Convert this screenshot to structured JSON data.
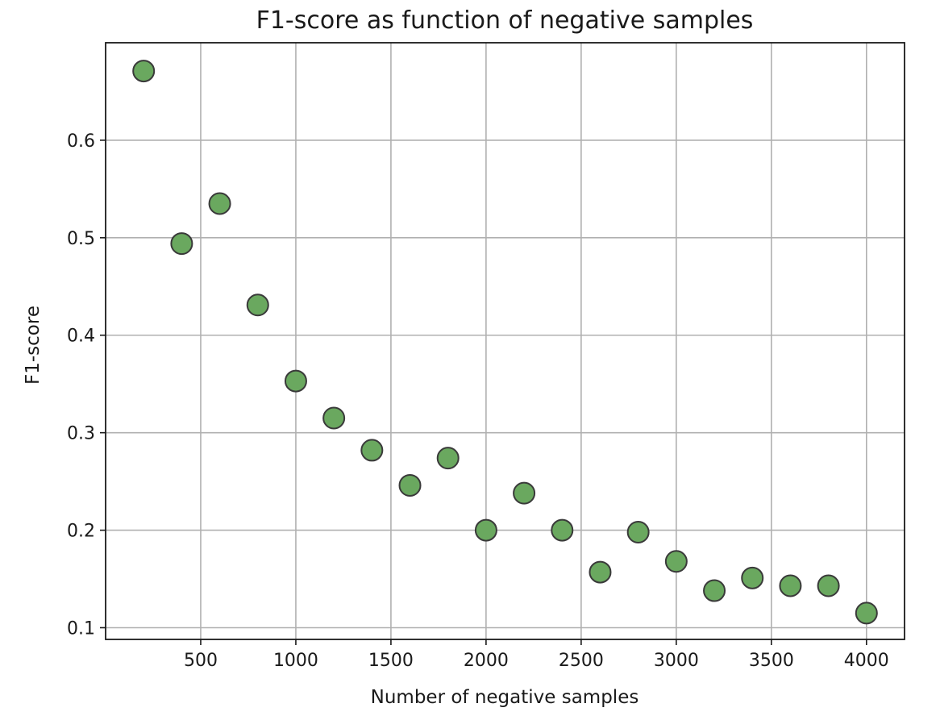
{
  "chart_data": {
    "type": "scatter",
    "title": "F1-score as function of negative samples",
    "xlabel": "Number of negative samples",
    "ylabel": "F1-score",
    "xlim": [
      0,
      4200
    ],
    "ylim": [
      0.088,
      0.7
    ],
    "xticks": [
      500,
      1000,
      1500,
      2000,
      2500,
      3000,
      3500,
      4000
    ],
    "yticks": [
      0.1,
      0.2,
      0.3,
      0.4,
      0.5,
      0.6
    ],
    "xtick_labels": [
      "500",
      "1000",
      "1500",
      "2000",
      "2500",
      "3000",
      "3500",
      "4000"
    ],
    "ytick_labels": [
      "0.1",
      "0.2",
      "0.3",
      "0.4",
      "0.5",
      "0.6"
    ],
    "grid": true,
    "legend": false,
    "marker_color": "#6aa85f",
    "marker_edge_color": "#3a3a3a",
    "x": [
      200,
      400,
      600,
      800,
      1000,
      1200,
      1400,
      1600,
      1800,
      2000,
      2200,
      2400,
      2600,
      2800,
      3000,
      3200,
      3400,
      3600,
      3800,
      4000
    ],
    "y": [
      0.671,
      0.494,
      0.535,
      0.431,
      0.353,
      0.315,
      0.282,
      0.246,
      0.274,
      0.2,
      0.238,
      0.2,
      0.157,
      0.198,
      0.168,
      0.138,
      0.151,
      0.143,
      0.143,
      0.115
    ]
  }
}
